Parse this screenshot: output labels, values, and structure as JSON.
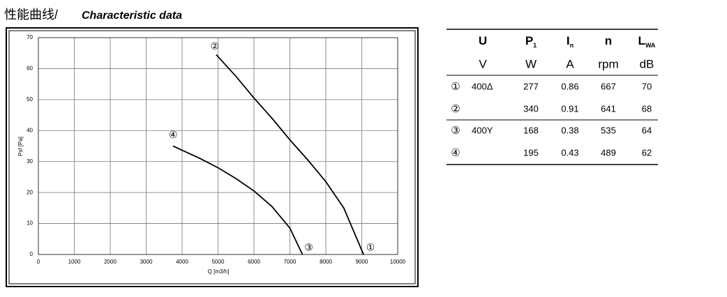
{
  "header": {
    "title_cn": "性能曲线/",
    "title_en": "Characteristic data"
  },
  "chart_data": {
    "type": "line",
    "xlabel": "Q [m3/h]",
    "ylabel": "Psf [Pa]",
    "xlim": [
      0,
      10000
    ],
    "ylim": [
      0,
      70
    ],
    "xticks": [
      0,
      1000,
      2000,
      3000,
      4000,
      5000,
      6000,
      7000,
      8000,
      9000,
      10000
    ],
    "yticks": [
      0,
      10,
      20,
      30,
      40,
      50,
      60,
      70
    ],
    "grid": true,
    "series": [
      {
        "color": "#000000",
        "x": [
          4950,
          5500,
          6000,
          6500,
          7000,
          7500,
          8000,
          8500,
          9050
        ],
        "values": [
          64.5,
          57.5,
          50.5,
          44,
          37,
          30.5,
          23.5,
          15,
          0
        ]
      },
      {
        "color": "#000000",
        "x": [
          3750,
          4500,
          5000,
          5500,
          6000,
          6500,
          7000,
          7350
        ],
        "values": [
          35,
          31,
          28,
          24.5,
          20.5,
          15.5,
          8.5,
          0
        ]
      }
    ],
    "points": [
      {
        "label": "②",
        "x": 4950,
        "y": 64.5
      },
      {
        "label": "①",
        "x": 9050,
        "y": 0
      },
      {
        "label": "④",
        "x": 3750,
        "y": 35
      },
      {
        "label": "③",
        "x": 7350,
        "y": 0
      }
    ]
  },
  "table": {
    "header": [
      {
        "main": "U"
      },
      {
        "main": "P",
        "sub": "1"
      },
      {
        "main": "I",
        "sub": "n"
      },
      {
        "main": "n"
      },
      {
        "main": "L",
        "sub": "WA"
      }
    ],
    "units": [
      "V",
      "W",
      "A",
      "rpm",
      "dB"
    ],
    "rows": [
      [
        "①",
        "400Δ",
        "277",
        "0.86",
        "667",
        "70"
      ],
      [
        "②",
        null,
        "340",
        "0.91",
        "641",
        "68"
      ],
      [
        "③",
        "400Y",
        "168",
        "0.38",
        "535",
        "64"
      ],
      [
        "④",
        null,
        "195",
        "0.43",
        "489",
        "62"
      ]
    ]
  }
}
